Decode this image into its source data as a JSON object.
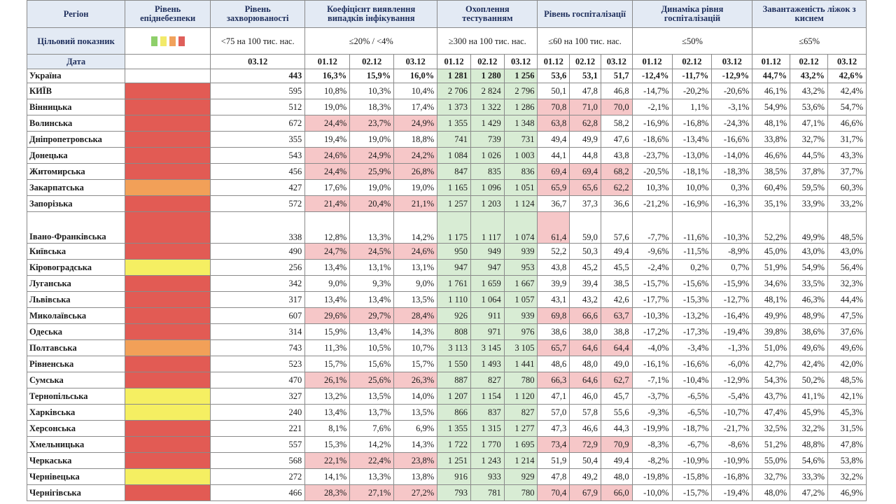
{
  "headers": {
    "region": "Регіон",
    "level": "Рівень епіднебезпеки",
    "incidence": "Рівень захворюваності",
    "detection": "Коефіцієнт виявлення випадків інфікування",
    "testing": "Охоплення тестуванням",
    "hospitalization": "Рівень госпіталізації",
    "dynamics": "Динаміка рівня госпіталізацій",
    "oxygen": "Завантаженість ліжок з киснем"
  },
  "targets": {
    "label": "Цільовий показник",
    "incidence": "<75 на 100 тис. нас.",
    "detection": "≤20% / <4%",
    "testing": "≥300 на 100 тис. нас.",
    "hospitalization": "≤60 на 100 тис. нас.",
    "dynamics": "≤50%",
    "oxygen": "≤65%"
  },
  "dates": {
    "label": "Дата",
    "incidence": "03.12",
    "d1": "01.12",
    "d2": "02.12",
    "d3": "03.12"
  },
  "swatch_colors": [
    "green",
    "yellow",
    "orange",
    "red"
  ],
  "rows": [
    {
      "region": "Україна",
      "level": "none",
      "inc": "443",
      "v": [
        "16,3%",
        "15,9%",
        "16,0%",
        "1 281",
        "1 280",
        "1 256",
        "53,6",
        "53,1",
        "51,7",
        "-12,4%",
        "-11,7%",
        "-12,9%",
        "44,7%",
        "43,2%",
        "42,6%"
      ],
      "c": [
        "n",
        "n",
        "n",
        "g",
        "g",
        "g",
        "n",
        "n",
        "n",
        "n",
        "n",
        "n",
        "n",
        "n",
        "n"
      ]
    },
    {
      "region": "КИЇВ",
      "level": "red",
      "inc": "595",
      "v": [
        "10,8%",
        "10,3%",
        "10,4%",
        "2 706",
        "2 824",
        "2 796",
        "50,1",
        "47,8",
        "46,8",
        "-14,7%",
        "-20,2%",
        "-20,6%",
        "46,1%",
        "43,2%",
        "42,4%"
      ],
      "c": [
        "n",
        "n",
        "n",
        "g",
        "g",
        "g",
        "n",
        "n",
        "n",
        "n",
        "n",
        "n",
        "n",
        "n",
        "n"
      ]
    },
    {
      "region": "Вінницька",
      "level": "red",
      "inc": "512",
      "v": [
        "19,0%",
        "18,3%",
        "17,4%",
        "1 373",
        "1 322",
        "1 286",
        "70,8",
        "71,0",
        "70,0",
        "-2,1%",
        "1,1%",
        "-3,1%",
        "54,9%",
        "53,6%",
        "54,7%"
      ],
      "c": [
        "n",
        "n",
        "n",
        "g",
        "g",
        "g",
        "r",
        "r",
        "r",
        "n",
        "n",
        "n",
        "n",
        "n",
        "n"
      ]
    },
    {
      "region": "Волинська",
      "level": "red",
      "inc": "672",
      "v": [
        "24,4%",
        "23,7%",
        "24,9%",
        "1 355",
        "1 429",
        "1 348",
        "63,8",
        "62,8",
        "58,2",
        "-16,9%",
        "-16,8%",
        "-24,3%",
        "48,1%",
        "47,1%",
        "46,6%"
      ],
      "c": [
        "r",
        "r",
        "r",
        "g",
        "g",
        "g",
        "r",
        "r",
        "n",
        "n",
        "n",
        "n",
        "n",
        "n",
        "n"
      ]
    },
    {
      "region": "Дніпропетровська",
      "level": "red",
      "inc": "355",
      "v": [
        "19,4%",
        "19,0%",
        "18,8%",
        "741",
        "739",
        "731",
        "49,4",
        "49,9",
        "47,6",
        "-18,6%",
        "-13,4%",
        "-16,6%",
        "33,8%",
        "32,7%",
        "31,7%"
      ],
      "c": [
        "n",
        "n",
        "n",
        "g",
        "g",
        "g",
        "n",
        "n",
        "n",
        "n",
        "n",
        "n",
        "n",
        "n",
        "n"
      ]
    },
    {
      "region": "Донецька",
      "level": "red",
      "inc": "543",
      "v": [
        "24,6%",
        "24,9%",
        "24,2%",
        "1 084",
        "1 026",
        "1 003",
        "44,1",
        "44,8",
        "43,8",
        "-23,7%",
        "-13,0%",
        "-14,0%",
        "46,6%",
        "44,5%",
        "43,3%"
      ],
      "c": [
        "r",
        "r",
        "r",
        "g",
        "g",
        "g",
        "n",
        "n",
        "n",
        "n",
        "n",
        "n",
        "n",
        "n",
        "n"
      ]
    },
    {
      "region": "Житомирська",
      "level": "red",
      "inc": "456",
      "v": [
        "24,4%",
        "25,9%",
        "26,8%",
        "847",
        "835",
        "836",
        "69,4",
        "69,4",
        "68,2",
        "-20,5%",
        "-18,1%",
        "-18,3%",
        "38,5%",
        "37,8%",
        "37,7%"
      ],
      "c": [
        "r",
        "r",
        "r",
        "g",
        "g",
        "g",
        "r",
        "r",
        "r",
        "n",
        "n",
        "n",
        "n",
        "n",
        "n"
      ]
    },
    {
      "region": "Закарпатська",
      "level": "orange",
      "inc": "427",
      "v": [
        "17,6%",
        "19,0%",
        "19,0%",
        "1 165",
        "1 096",
        "1 051",
        "65,9",
        "65,6",
        "62,2",
        "10,3%",
        "10,0%",
        "0,3%",
        "60,4%",
        "59,5%",
        "60,3%"
      ],
      "c": [
        "n",
        "n",
        "n",
        "g",
        "g",
        "g",
        "r",
        "r",
        "r",
        "n",
        "n",
        "n",
        "n",
        "n",
        "n"
      ]
    },
    {
      "region": "Запорізька",
      "level": "red",
      "inc": "572",
      "v": [
        "21,4%",
        "20,4%",
        "21,1%",
        "1 257",
        "1 203",
        "1 124",
        "36,7",
        "37,3",
        "36,6",
        "-21,2%",
        "-16,9%",
        "-16,3%",
        "35,1%",
        "33,9%",
        "33,2%"
      ],
      "c": [
        "r",
        "r",
        "r",
        "g",
        "g",
        "g",
        "n",
        "n",
        "n",
        "n",
        "n",
        "n",
        "n",
        "n",
        "n"
      ]
    },
    {
      "region": "Івано-Франківська",
      "tall": true,
      "level": "red",
      "inc": "338",
      "v": [
        "12,8%",
        "13,3%",
        "14,2%",
        "1 175",
        "1 117",
        "1 074",
        "61,4",
        "59,0",
        "57,6",
        "-7,7%",
        "-11,6%",
        "-10,3%",
        "52,2%",
        "49,9%",
        "48,5%"
      ],
      "c": [
        "n",
        "n",
        "n",
        "g",
        "g",
        "g",
        "r",
        "n",
        "n",
        "n",
        "n",
        "n",
        "n",
        "n",
        "n"
      ]
    },
    {
      "region": "Київська",
      "level": "red",
      "inc": "490",
      "v": [
        "24,7%",
        "24,5%",
        "24,6%",
        "950",
        "949",
        "939",
        "52,2",
        "50,3",
        "49,4",
        "-9,6%",
        "-11,5%",
        "-8,9%",
        "45,0%",
        "43,0%",
        "43,0%"
      ],
      "c": [
        "r",
        "r",
        "r",
        "g",
        "g",
        "g",
        "n",
        "n",
        "n",
        "n",
        "n",
        "n",
        "n",
        "n",
        "n"
      ]
    },
    {
      "region": "Кіровоградська",
      "level": "yellow",
      "inc": "256",
      "v": [
        "13,4%",
        "13,1%",
        "13,1%",
        "947",
        "947",
        "953",
        "43,8",
        "45,2",
        "45,5",
        "-2,4%",
        "0,2%",
        "0,7%",
        "51,9%",
        "54,9%",
        "56,4%"
      ],
      "c": [
        "n",
        "n",
        "n",
        "g",
        "g",
        "g",
        "n",
        "n",
        "n",
        "n",
        "n",
        "n",
        "n",
        "n",
        "n"
      ]
    },
    {
      "region": "Луганська",
      "level": "red",
      "inc": "342",
      "v": [
        "9,0%",
        "9,3%",
        "9,0%",
        "1 761",
        "1 659",
        "1 667",
        "39,9",
        "39,4",
        "38,5",
        "-15,7%",
        "-15,6%",
        "-15,9%",
        "34,6%",
        "33,5%",
        "32,3%"
      ],
      "c": [
        "n",
        "n",
        "n",
        "g",
        "g",
        "g",
        "n",
        "n",
        "n",
        "n",
        "n",
        "n",
        "n",
        "n",
        "n"
      ]
    },
    {
      "region": "Львівська",
      "level": "red",
      "inc": "317",
      "v": [
        "13,4%",
        "13,4%",
        "13,5%",
        "1 110",
        "1 064",
        "1 057",
        "43,1",
        "43,2",
        "42,6",
        "-17,7%",
        "-15,3%",
        "-12,7%",
        "48,1%",
        "46,3%",
        "44,4%"
      ],
      "c": [
        "n",
        "n",
        "n",
        "g",
        "g",
        "g",
        "n",
        "n",
        "n",
        "n",
        "n",
        "n",
        "n",
        "n",
        "n"
      ]
    },
    {
      "region": "Миколаївська",
      "level": "red",
      "inc": "607",
      "v": [
        "29,6%",
        "29,7%",
        "28,4%",
        "926",
        "911",
        "939",
        "69,8",
        "66,6",
        "63,7",
        "-10,3%",
        "-13,2%",
        "-16,4%",
        "49,9%",
        "48,9%",
        "47,5%"
      ],
      "c": [
        "r",
        "r",
        "r",
        "g",
        "g",
        "g",
        "r",
        "r",
        "r",
        "n",
        "n",
        "n",
        "n",
        "n",
        "n"
      ]
    },
    {
      "region": "Одеська",
      "level": "red",
      "inc": "314",
      "v": [
        "15,9%",
        "13,4%",
        "14,3%",
        "808",
        "971",
        "976",
        "38,6",
        "38,0",
        "38,8",
        "-17,2%",
        "-17,3%",
        "-19,4%",
        "39,8%",
        "38,6%",
        "37,6%"
      ],
      "c": [
        "n",
        "n",
        "n",
        "g",
        "g",
        "g",
        "n",
        "n",
        "n",
        "n",
        "n",
        "n",
        "n",
        "n",
        "n"
      ]
    },
    {
      "region": "Полтавська",
      "level": "orange",
      "inc": "743",
      "v": [
        "11,3%",
        "10,5%",
        "10,7%",
        "3 113",
        "3 145",
        "3 105",
        "65,7",
        "64,6",
        "64,4",
        "-4,0%",
        "-3,4%",
        "-1,3%",
        "51,0%",
        "49,6%",
        "49,6%"
      ],
      "c": [
        "n",
        "n",
        "n",
        "g",
        "g",
        "g",
        "r",
        "r",
        "r",
        "n",
        "n",
        "n",
        "n",
        "n",
        "n"
      ]
    },
    {
      "region": "Рівненська",
      "level": "red",
      "inc": "523",
      "v": [
        "15,7%",
        "15,6%",
        "15,7%",
        "1 550",
        "1 493",
        "1 441",
        "48,6",
        "48,0",
        "49,0",
        "-16,1%",
        "-16,6%",
        "-6,0%",
        "42,7%",
        "42,4%",
        "42,0%"
      ],
      "c": [
        "n",
        "n",
        "n",
        "g",
        "g",
        "g",
        "n",
        "n",
        "n",
        "n",
        "n",
        "n",
        "n",
        "n",
        "n"
      ]
    },
    {
      "region": "Сумська",
      "level": "red",
      "inc": "470",
      "v": [
        "26,1%",
        "25,6%",
        "26,3%",
        "887",
        "827",
        "780",
        "66,3",
        "64,6",
        "62,7",
        "-7,1%",
        "-10,4%",
        "-12,9%",
        "54,3%",
        "50,2%",
        "48,5%"
      ],
      "c": [
        "r",
        "r",
        "r",
        "g",
        "g",
        "g",
        "r",
        "r",
        "r",
        "n",
        "n",
        "n",
        "n",
        "n",
        "n"
      ]
    },
    {
      "region": "Тернопільська",
      "level": "yellow",
      "inc": "327",
      "v": [
        "13,2%",
        "13,5%",
        "14,0%",
        "1 207",
        "1 154",
        "1 120",
        "47,1",
        "46,0",
        "45,7",
        "-3,7%",
        "-6,5%",
        "-5,4%",
        "43,7%",
        "41,1%",
        "42,1%"
      ],
      "c": [
        "n",
        "n",
        "n",
        "g",
        "g",
        "g",
        "n",
        "n",
        "n",
        "n",
        "n",
        "n",
        "n",
        "n",
        "n"
      ]
    },
    {
      "region": "Харківська",
      "level": "yellow",
      "inc": "240",
      "v": [
        "13,4%",
        "13,7%",
        "13,5%",
        "866",
        "837",
        "827",
        "57,0",
        "57,8",
        "55,6",
        "-9,3%",
        "-6,5%",
        "-10,7%",
        "47,4%",
        "45,9%",
        "45,3%"
      ],
      "c": [
        "n",
        "n",
        "n",
        "g",
        "g",
        "g",
        "n",
        "n",
        "n",
        "n",
        "n",
        "n",
        "n",
        "n",
        "n"
      ]
    },
    {
      "region": "Херсонська",
      "level": "red",
      "inc": "221",
      "v": [
        "8,1%",
        "7,6%",
        "6,9%",
        "1 355",
        "1 315",
        "1 277",
        "47,3",
        "46,6",
        "44,3",
        "-19,9%",
        "-18,7%",
        "-21,7%",
        "32,5%",
        "32,2%",
        "31,5%"
      ],
      "c": [
        "n",
        "n",
        "n",
        "g",
        "g",
        "g",
        "n",
        "n",
        "n",
        "n",
        "n",
        "n",
        "n",
        "n",
        "n"
      ]
    },
    {
      "region": "Хмельницька",
      "level": "red",
      "inc": "557",
      "v": [
        "15,3%",
        "14,2%",
        "14,3%",
        "1 722",
        "1 770",
        "1 695",
        "73,4",
        "72,9",
        "70,9",
        "-8,3%",
        "-6,7%",
        "-8,6%",
        "51,2%",
        "48,8%",
        "47,8%"
      ],
      "c": [
        "n",
        "n",
        "n",
        "g",
        "g",
        "g",
        "r",
        "r",
        "r",
        "n",
        "n",
        "n",
        "n",
        "n",
        "n"
      ]
    },
    {
      "region": "Черкаська",
      "level": "red",
      "inc": "568",
      "v": [
        "22,1%",
        "22,4%",
        "23,8%",
        "1 251",
        "1 243",
        "1 214",
        "51,9",
        "50,4",
        "49,4",
        "-8,2%",
        "-10,9%",
        "-10,9%",
        "55,0%",
        "54,6%",
        "53,8%"
      ],
      "c": [
        "r",
        "r",
        "r",
        "g",
        "g",
        "g",
        "n",
        "n",
        "n",
        "n",
        "n",
        "n",
        "n",
        "n",
        "n"
      ]
    },
    {
      "region": "Чернівецька",
      "level": "yellow",
      "inc": "272",
      "v": [
        "14,1%",
        "13,3%",
        "13,8%",
        "916",
        "933",
        "929",
        "47,8",
        "49,2",
        "48,0",
        "-19,8%",
        "-15,8%",
        "-16,8%",
        "32,7%",
        "33,3%",
        "32,2%"
      ],
      "c": [
        "n",
        "n",
        "n",
        "g",
        "g",
        "g",
        "n",
        "n",
        "n",
        "n",
        "n",
        "n",
        "n",
        "n",
        "n"
      ]
    },
    {
      "region": "Чернігівська",
      "level": "red",
      "inc": "466",
      "v": [
        "28,3%",
        "27,1%",
        "27,2%",
        "793",
        "781",
        "780",
        "70,4",
        "67,9",
        "66,0",
        "-10,0%",
        "-15,7%",
        "-19,4%",
        "48,0%",
        "47,2%",
        "46,9%"
      ],
      "c": [
        "r",
        "r",
        "r",
        "g",
        "g",
        "g",
        "r",
        "r",
        "r",
        "n",
        "n",
        "n",
        "n",
        "n",
        "n"
      ]
    }
  ]
}
